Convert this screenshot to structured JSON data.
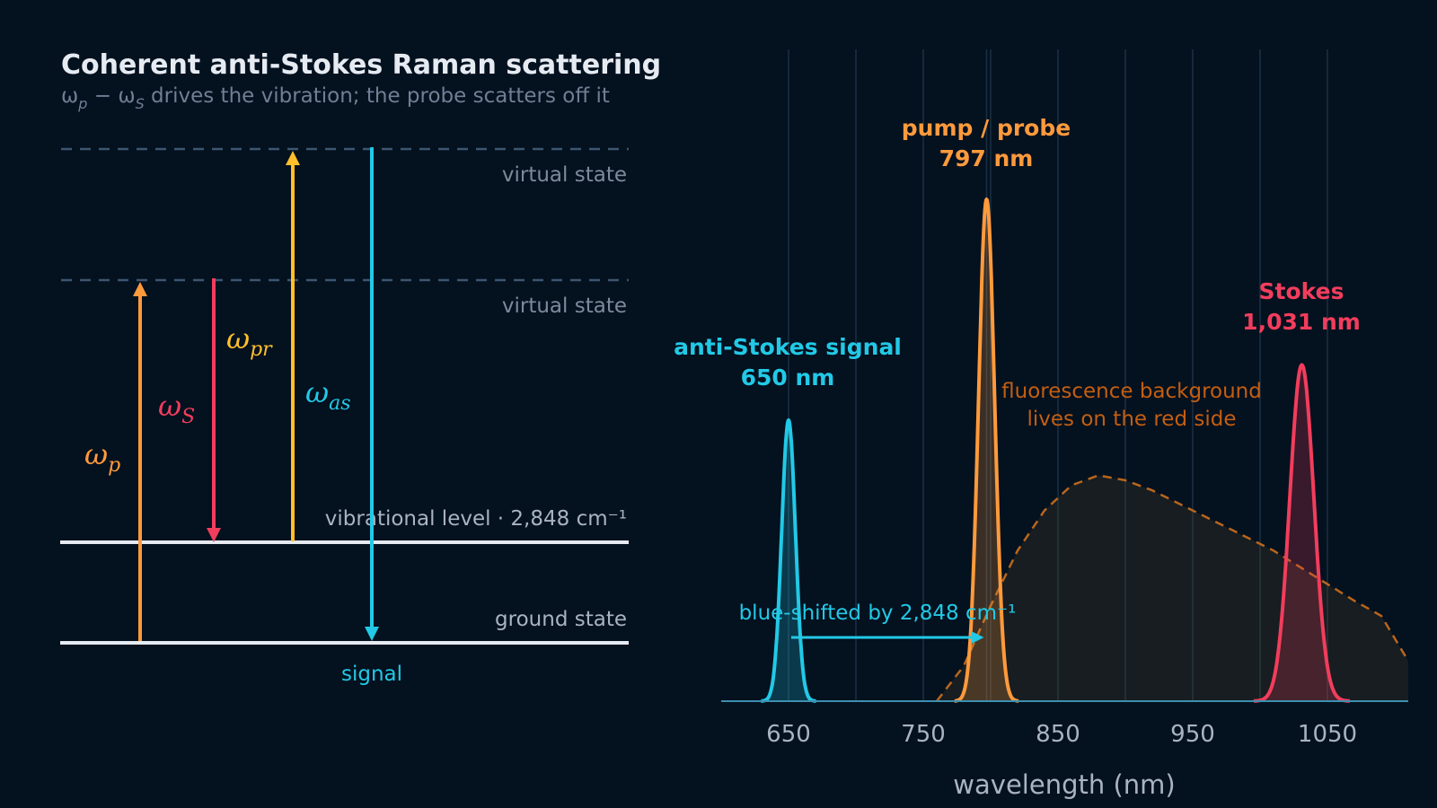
{
  "title": "Coherent anti-Stokes Raman scattering",
  "subtitle": "ωp − ωS drives the vibration; the probe scatters off it",
  "colors": {
    "background": "#04111f",
    "pump": "#ff9a3c",
    "stokes": "#f23d5c",
    "probe": "#ffc02a",
    "antistokes": "#22c9e6",
    "fluorescence": "#b8661c",
    "grid": "#1b3045",
    "level_line": "#e6ebf2",
    "virtual_line": "#3d5670"
  },
  "energy_diagram": {
    "virtual_state_upper": "virtual state",
    "virtual_state_lower": "virtual state",
    "vibrational_level": "vibrational level · 2,848 cm⁻¹",
    "ground_state": "ground state",
    "signal_label": "signal",
    "transitions": [
      {
        "id": "pump",
        "label": "ω",
        "sub": "p",
        "color": "#ff9a3c",
        "direction": "up"
      },
      {
        "id": "stokes",
        "label": "ω",
        "sub": "S",
        "color": "#f23d5c",
        "direction": "down"
      },
      {
        "id": "probe",
        "label": "ω",
        "sub": "pr",
        "color": "#ffc02a",
        "direction": "up"
      },
      {
        "id": "antistokes",
        "label": "ω",
        "sub": "as",
        "color": "#22c9e6",
        "direction": "down"
      }
    ]
  },
  "chart_data": {
    "type": "line",
    "xlabel": "wavelength (nm)",
    "ylabel": "",
    "xlim": [
      600,
      1110
    ],
    "ylim": [
      0,
      1.0
    ],
    "xticks": [
      650,
      750,
      850,
      950,
      1050
    ],
    "grid": "vertical",
    "series": [
      {
        "name": "anti-Stokes signal",
        "center": 650,
        "fwhm": 12,
        "amplitude": 0.56,
        "color": "#22c9e6",
        "style": "solid"
      },
      {
        "name": "pump / probe",
        "center": 797,
        "fwhm": 14,
        "amplitude": 1.0,
        "color": "#ff9a3c",
        "style": "solid"
      },
      {
        "name": "Stokes",
        "center": 1031,
        "fwhm": 21,
        "amplitude": 0.67,
        "color": "#f23d5c",
        "style": "solid"
      },
      {
        "name": "fluorescence background",
        "style": "dashed",
        "color": "#b8661c",
        "x": [
          760,
          780,
          800,
          820,
          840,
          860,
          880,
          900,
          920,
          950,
          980,
          1010,
          1040,
          1070,
          1090,
          1110
        ],
        "y": [
          0.0,
          0.07,
          0.19,
          0.3,
          0.38,
          0.43,
          0.45,
          0.44,
          0.42,
          0.38,
          0.34,
          0.3,
          0.25,
          0.2,
          0.17,
          0.08
        ]
      }
    ],
    "annotations": {
      "antistokes": {
        "line1": "anti-Stokes signal",
        "line2": "650 nm"
      },
      "pump": {
        "line1": "pump / probe",
        "line2": "797 nm"
      },
      "stokes": {
        "line1": "Stokes",
        "line2": "1,031 nm"
      },
      "fluorescence": {
        "line1": "fluorescence background",
        "line2": "lives on the red side"
      },
      "shift": {
        "text": "blue-shifted by 2,848 cm⁻¹",
        "from_nm": 652,
        "to_nm": 795
      }
    }
  }
}
